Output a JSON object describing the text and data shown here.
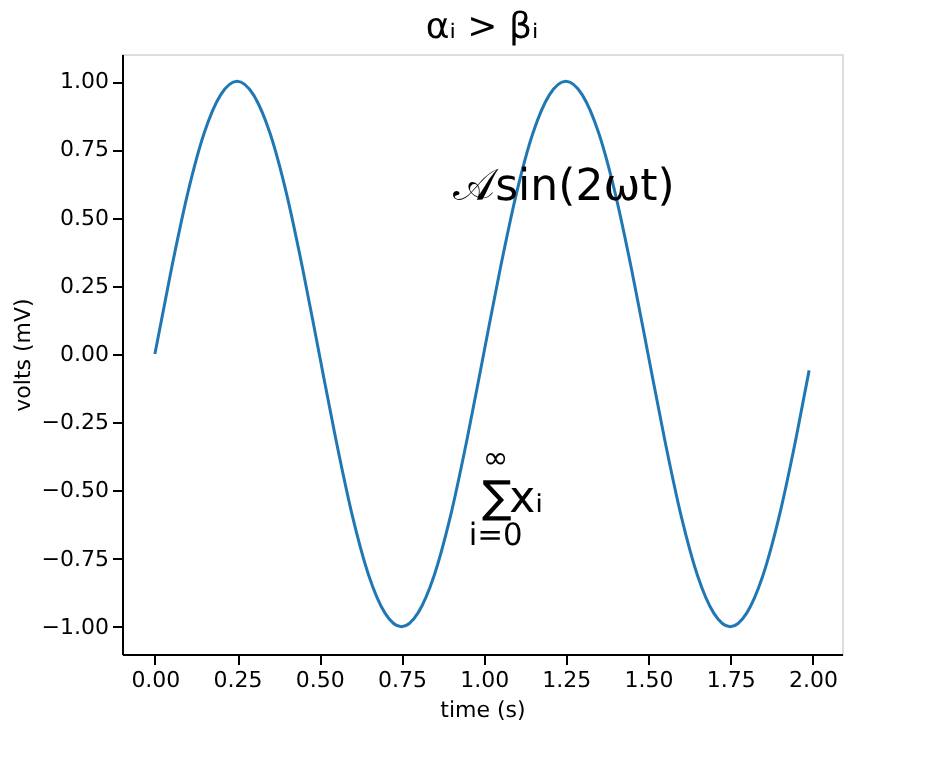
{
  "chart_data": {
    "type": "line",
    "title": "αᵢ > βᵢ",
    "xlabel": "time (s)",
    "ylabel": "volts (mV)",
    "x": [
      0,
      0.05,
      0.1,
      0.15,
      0.2,
      0.25,
      0.3,
      0.35,
      0.4,
      0.45,
      0.5,
      0.55,
      0.6,
      0.65,
      0.7,
      0.75,
      0.8,
      0.85,
      0.9,
      0.95,
      1.0,
      1.05,
      1.1,
      1.15,
      1.2,
      1.25,
      1.3,
      1.35,
      1.4,
      1.45,
      1.5,
      1.55,
      1.6,
      1.65,
      1.7,
      1.75,
      1.8,
      1.85,
      1.9,
      1.95,
      1.99
    ],
    "series": [
      {
        "color": "#1f77b4",
        "values": [
          0,
          0.31,
          0.59,
          0.81,
          0.95,
          1,
          0.95,
          0.81,
          0.59,
          0.31,
          0,
          -0.31,
          -0.59,
          -0.81,
          -0.95,
          -1,
          -0.95,
          -0.81,
          -0.59,
          -0.31,
          0,
          0.31,
          0.59,
          0.81,
          0.95,
          1,
          0.95,
          0.81,
          0.59,
          0.31,
          0,
          -0.31,
          -0.59,
          -0.81,
          -0.95,
          -1,
          -0.95,
          -0.81,
          -0.59,
          -0.31,
          -0.06
        ]
      }
    ],
    "xlim": [
      -0.1,
      2.09
    ],
    "xticks": [
      {
        "value": 0,
        "label": "0.00"
      },
      {
        "value": 0.25,
        "label": "0.25"
      },
      {
        "value": 0.5,
        "label": "0.50"
      },
      {
        "value": 0.75,
        "label": "0.75"
      },
      {
        "value": 1,
        "label": "1.00"
      },
      {
        "value": 1.25,
        "label": "1.25"
      },
      {
        "value": 1.5,
        "label": "1.50"
      },
      {
        "value": 1.75,
        "label": "1.75"
      },
      {
        "value": 2,
        "label": "2.00"
      }
    ],
    "ylim": [
      -1.1,
      1.1
    ],
    "yticks": [
      {
        "value": -1,
        "label": "−1.00"
      },
      {
        "value": -0.75,
        "label": "−0.75"
      },
      {
        "value": -0.5,
        "label": "−0.50"
      },
      {
        "value": -0.25,
        "label": "−0.25"
      },
      {
        "value": 0,
        "label": "0.00"
      },
      {
        "value": 0.25,
        "label": "0.25"
      },
      {
        "value": 0.5,
        "label": "0.50"
      },
      {
        "value": 0.75,
        "label": "0.75"
      },
      {
        "value": 1,
        "label": "1.00"
      }
    ],
    "annotations": [
      "𝒜sin(2ωt)",
      "∑$_{i=0}$$^{∞}$xᵢ"
    ],
    "grid": false,
    "legend": false,
    "marker": "none",
    "line_style": "solid"
  }
}
